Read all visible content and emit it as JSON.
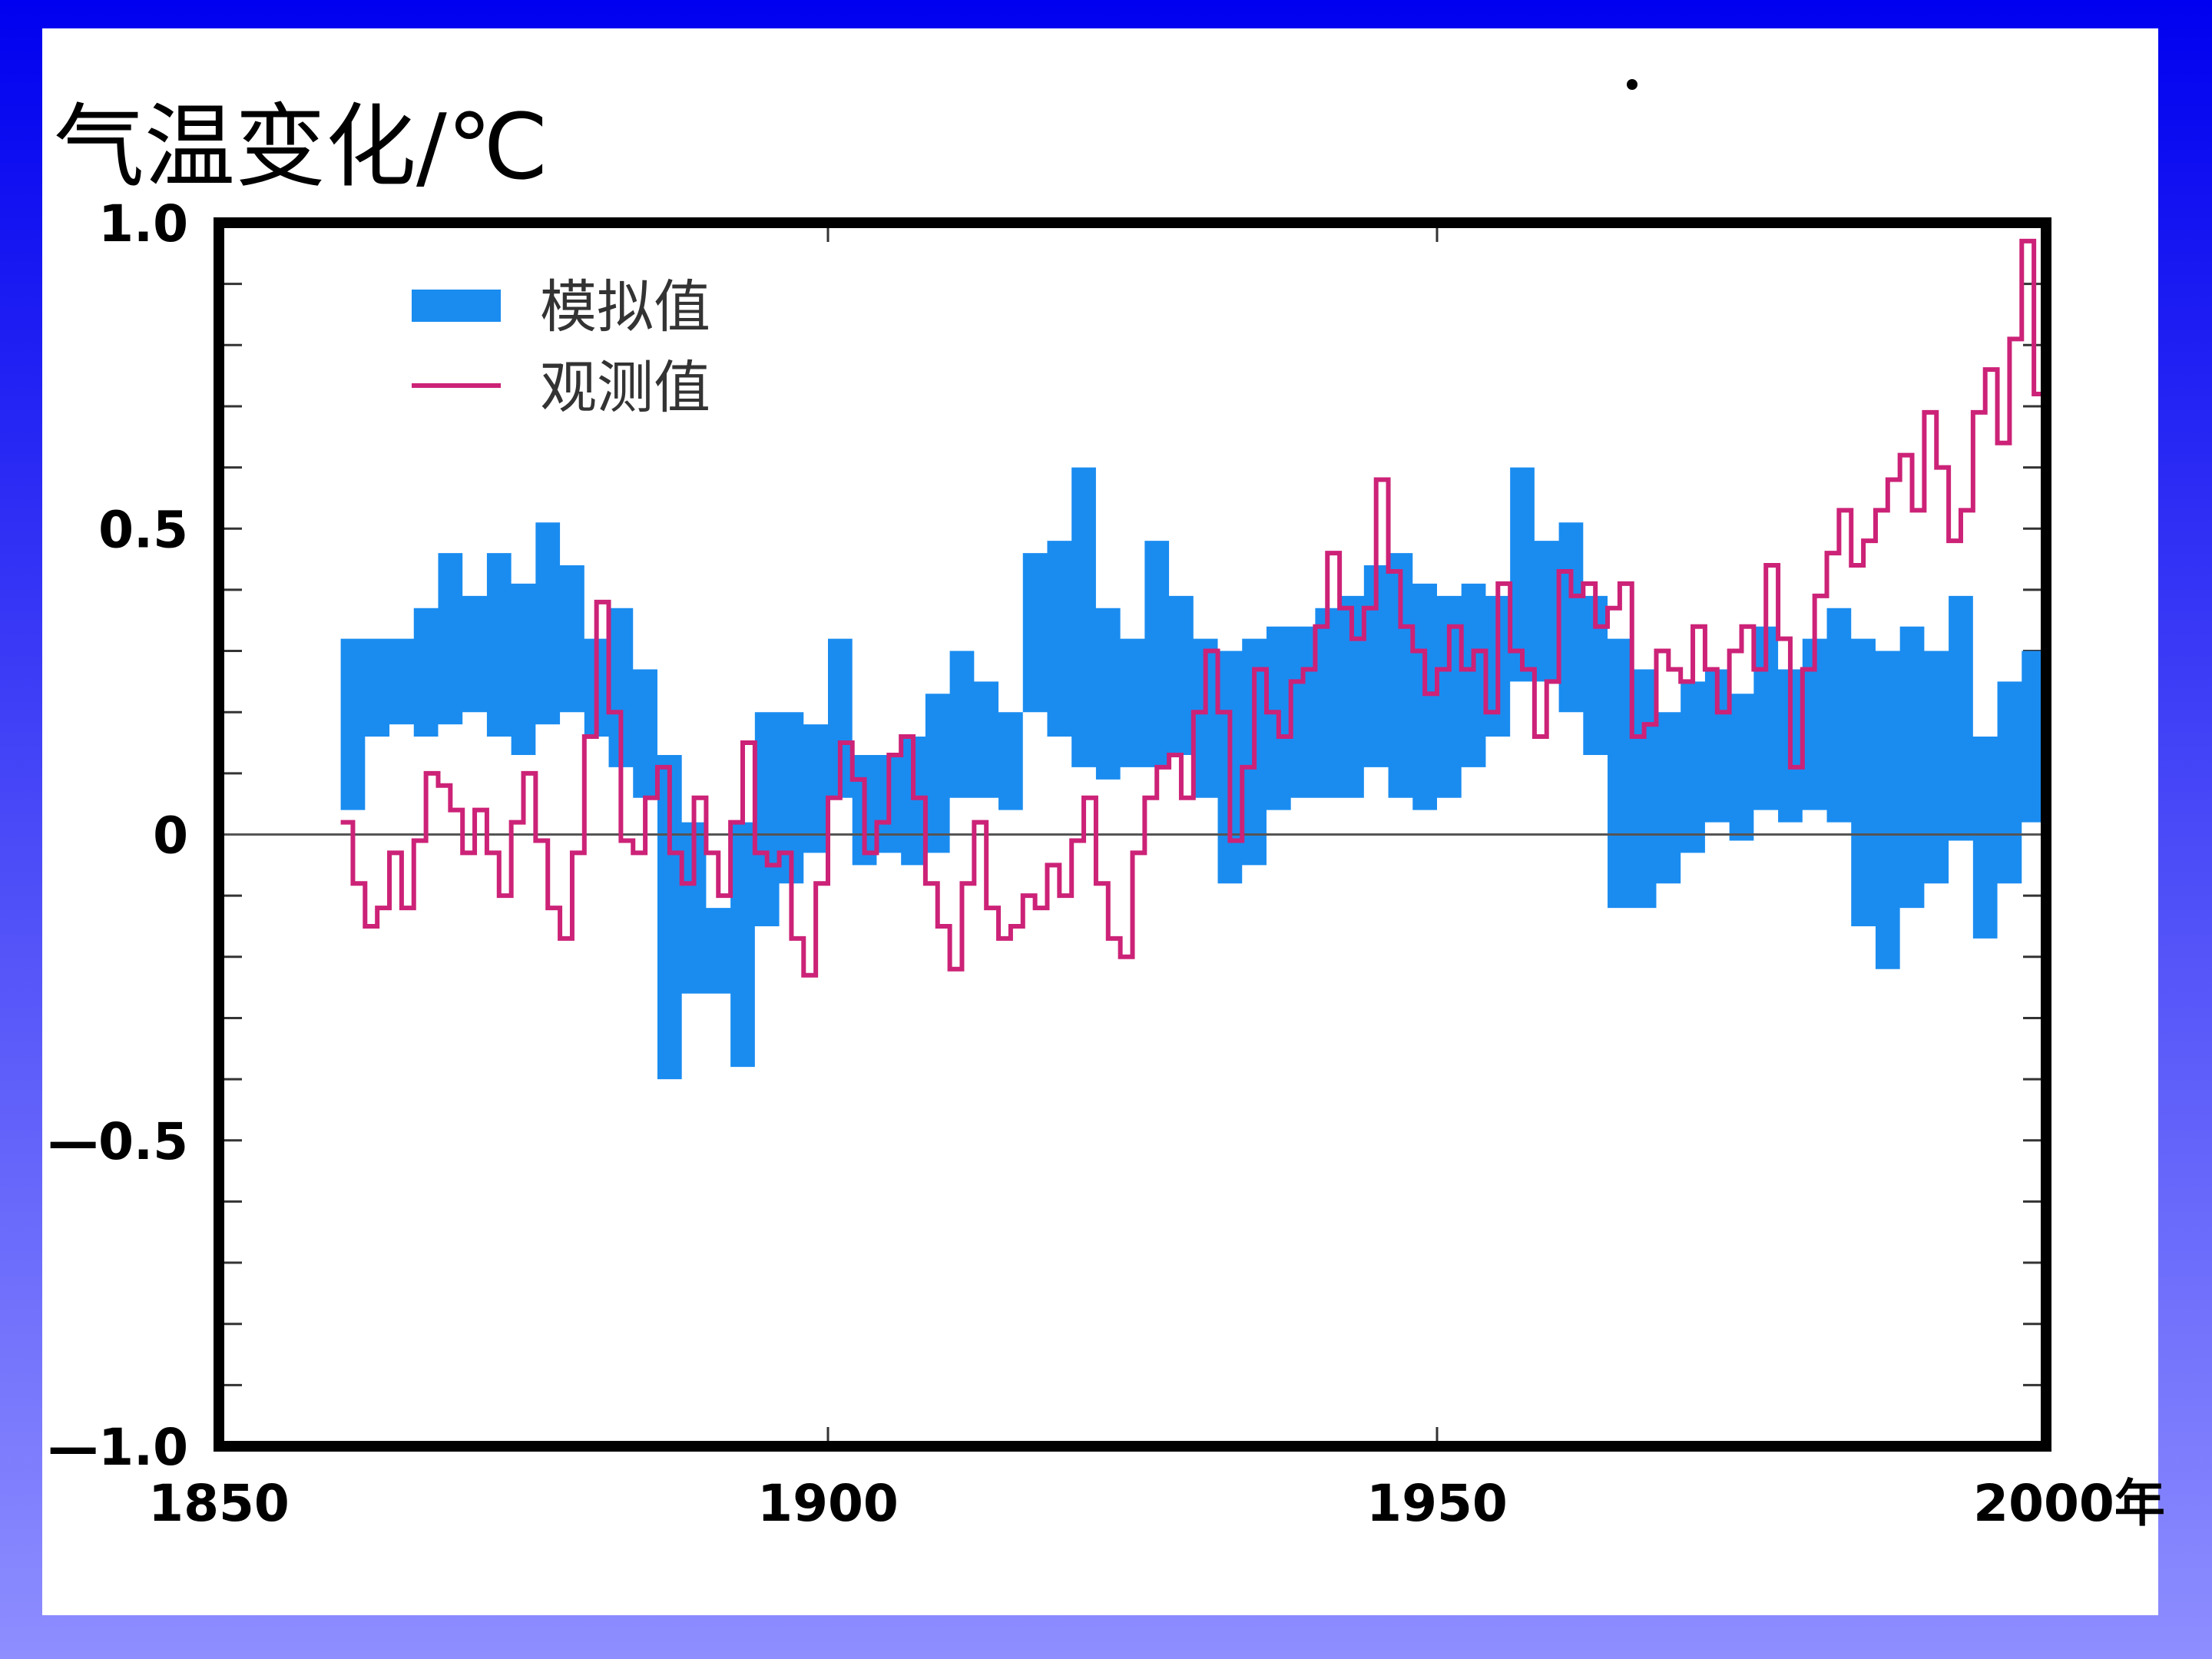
{
  "chart_data": {
    "type": "line",
    "title": "气温变化/℃",
    "xlabel": "年",
    "ylabel": "气温变化/℃",
    "xlim": [
      1850,
      2000
    ],
    "ylim": [
      -1.0,
      1.0
    ],
    "x_ticks": [
      1850,
      1900,
      1950,
      2000
    ],
    "x_tick_labels": [
      "1850",
      "1900",
      "1950",
      "2000年"
    ],
    "y_ticks": [
      1.0,
      0.5,
      0,
      -0.5,
      -1.0
    ],
    "y_tick_labels": [
      "1.0",
      "0.5",
      "0",
      "—0.5",
      "—1.0"
    ],
    "legend": {
      "position": "top-left",
      "entries": [
        "模拟值",
        "观测值"
      ]
    },
    "colors": {
      "simulated": "#1a8cf0",
      "observed": "#cc2277"
    },
    "series": [
      {
        "name": "模拟值",
        "kind": "band",
        "x": [
          1860,
          1862,
          1864,
          1866,
          1868,
          1870,
          1872,
          1874,
          1876,
          1878,
          1880,
          1882,
          1884,
          1886,
          1888,
          1890,
          1892,
          1894,
          1896,
          1898,
          1900,
          1902,
          1904,
          1906,
          1908,
          1910,
          1912,
          1914,
          1916,
          1918,
          1920,
          1922,
          1924,
          1926,
          1928,
          1930,
          1932,
          1934,
          1936,
          1938,
          1940,
          1942,
          1944,
          1946,
          1948,
          1950,
          1952,
          1954,
          1956,
          1958,
          1960,
          1962,
          1964,
          1966,
          1968,
          1970,
          1972,
          1974,
          1976,
          1978,
          1980,
          1982,
          1984,
          1986,
          1988,
          1990,
          1992,
          1994,
          1996,
          1998
        ],
        "upper": [
          0.32,
          0.32,
          0.32,
          0.37,
          0.46,
          0.39,
          0.46,
          0.41,
          0.51,
          0.44,
          0.32,
          0.37,
          0.27,
          0.13,
          0.02,
          -0.12,
          0.02,
          0.2,
          0.2,
          0.18,
          0.32,
          0.13,
          0.13,
          0.16,
          0.23,
          0.3,
          0.25,
          0.2,
          0.46,
          0.48,
          0.6,
          0.37,
          0.32,
          0.48,
          0.39,
          0.32,
          0.3,
          0.32,
          0.34,
          0.34,
          0.37,
          0.39,
          0.44,
          0.46,
          0.41,
          0.39,
          0.41,
          0.39,
          0.6,
          0.48,
          0.51,
          0.39,
          0.32,
          0.27,
          0.2,
          0.25,
          0.27,
          0.23,
          0.34,
          0.27,
          0.32,
          0.37,
          0.32,
          0.3,
          0.34,
          0.3,
          0.39,
          0.16,
          0.25,
          0.3
        ],
        "lower": [
          0.04,
          0.16,
          0.18,
          0.16,
          0.18,
          0.2,
          0.16,
          0.13,
          0.18,
          0.2,
          0.16,
          0.11,
          0.06,
          -0.4,
          -0.26,
          -0.26,
          -0.38,
          -0.15,
          -0.08,
          -0.03,
          0.06,
          -0.05,
          -0.03,
          -0.05,
          -0.03,
          0.06,
          0.06,
          0.04,
          0.2,
          0.16,
          0.11,
          0.09,
          0.11,
          0.11,
          0.13,
          0.06,
          -0.08,
          -0.05,
          0.04,
          0.06,
          0.06,
          0.06,
          0.11,
          0.06,
          0.04,
          0.06,
          0.11,
          0.16,
          0.25,
          0.25,
          0.2,
          0.13,
          -0.12,
          -0.12,
          -0.08,
          -0.03,
          0.02,
          -0.01,
          0.04,
          0.02,
          0.04,
          0.02,
          -0.15,
          -0.22,
          -0.12,
          -0.08,
          -0.01,
          -0.17,
          -0.08,
          0.02
        ]
      },
      {
        "name": "观测值",
        "kind": "line",
        "x_start": 1860,
        "x_step": 1,
        "values": [
          0.02,
          -0.08,
          -0.15,
          -0.12,
          -0.03,
          -0.12,
          -0.01,
          0.1,
          0.08,
          0.04,
          -0.03,
          0.04,
          -0.03,
          -0.1,
          0.02,
          0.1,
          -0.01,
          -0.12,
          -0.17,
          -0.03,
          0.16,
          0.38,
          0.2,
          -0.01,
          -0.03,
          0.06,
          0.11,
          -0.03,
          -0.08,
          0.06,
          -0.03,
          -0.1,
          0.02,
          0.15,
          -0.03,
          -0.05,
          -0.03,
          -0.17,
          -0.23,
          -0.08,
          0.06,
          0.15,
          0.09,
          -0.03,
          0.02,
          0.13,
          0.16,
          0.06,
          -0.08,
          -0.15,
          -0.22,
          -0.08,
          0.02,
          -0.12,
          -0.17,
          -0.15,
          -0.1,
          -0.12,
          -0.05,
          -0.1,
          -0.01,
          0.06,
          -0.08,
          -0.17,
          -0.2,
          -0.03,
          0.06,
          0.11,
          0.13,
          0.06,
          0.2,
          0.3,
          0.2,
          -0.01,
          0.11,
          0.27,
          0.2,
          0.16,
          0.25,
          0.27,
          0.34,
          0.46,
          0.37,
          0.32,
          0.37,
          0.58,
          0.43,
          0.34,
          0.3,
          0.23,
          0.27,
          0.34,
          0.27,
          0.3,
          0.2,
          0.41,
          0.3,
          0.27,
          0.16,
          0.25,
          0.43,
          0.39,
          0.41,
          0.34,
          0.37,
          0.41,
          0.16,
          0.18,
          0.3,
          0.27,
          0.25,
          0.34,
          0.27,
          0.2,
          0.3,
          0.34,
          0.27,
          0.44,
          0.32,
          0.11,
          0.27,
          0.39,
          0.46,
          0.53,
          0.44,
          0.48,
          0.53,
          0.58,
          0.62,
          0.53,
          0.69,
          0.6,
          0.48,
          0.53,
          0.69,
          0.76,
          0.64,
          0.81,
          0.97,
          0.72
        ]
      }
    ]
  }
}
